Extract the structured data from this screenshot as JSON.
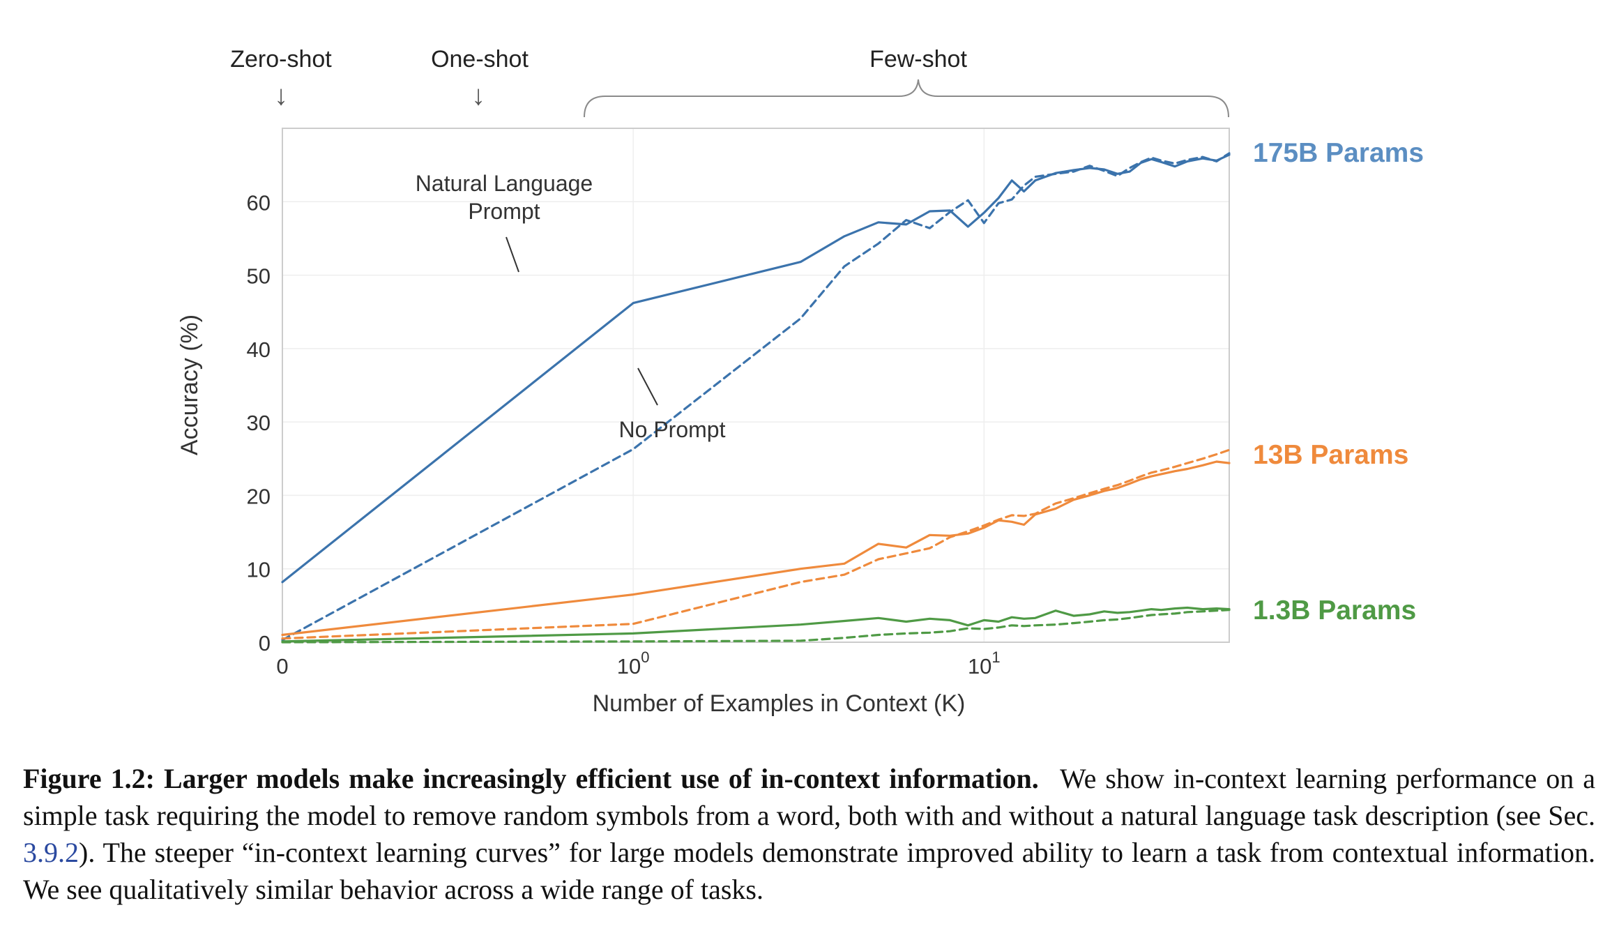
{
  "chart_data": {
    "type": "line",
    "xlabel": "Number of Examples in Context  (K)",
    "ylabel": "Accuracy (%)",
    "x_scale": "symlog",
    "ylim": [
      0,
      70
    ],
    "xlim": [
      0,
      50
    ],
    "x_tick_labels": [
      {
        "value": 0,
        "base": "0",
        "exp": ""
      },
      {
        "value": 1,
        "base": "10",
        "exp": "0"
      },
      {
        "value": 10,
        "base": "10",
        "exp": "1"
      }
    ],
    "y_ticks": [
      0,
      10,
      20,
      30,
      40,
      50,
      60
    ],
    "regions": {
      "zero_shot": "Zero-shot",
      "one_shot": "One-shot",
      "few_shot": "Few-shot",
      "arrow": "↓"
    },
    "annotations": {
      "natural_language_line1": "Natural Language",
      "natural_language_line2": "Prompt",
      "no_prompt": "No Prompt"
    },
    "series_labels": {
      "p175b": "175B Params",
      "p13b": "13B Params",
      "p1_3b": "1.3B Params"
    },
    "colors": {
      "p175b": "#3b73ac",
      "p13b": "#ef8a3c",
      "p1_3b": "#4f9a45",
      "axis": "#cccccc",
      "grid": "#eeeeee",
      "text": "#333333"
    },
    "series": [
      {
        "name": "175B Natural Language Prompt",
        "model": "p175b",
        "style": "solid",
        "x": [
          0,
          1,
          3,
          4,
          5,
          6,
          7,
          8,
          9,
          10,
          11,
          12,
          13,
          14,
          16,
          18,
          20,
          22,
          24,
          26,
          28,
          30,
          32,
          35,
          38,
          42,
          46,
          50
        ],
        "y": [
          8.2,
          46.2,
          51.8,
          55.3,
          57.2,
          56.9,
          58.7,
          58.8,
          56.6,
          58.5,
          60.5,
          62.9,
          61.4,
          62.9,
          63.9,
          64.3,
          64.6,
          64.4,
          63.8,
          64.1,
          65.3,
          65.8,
          65.4,
          64.8,
          65.5,
          65.9,
          65.6,
          66.4
        ]
      },
      {
        "name": "175B No Prompt",
        "model": "p175b",
        "style": "dashed",
        "x": [
          0,
          1,
          3,
          4,
          5,
          6,
          7,
          8,
          9,
          10,
          11,
          12,
          13,
          14,
          16,
          18,
          20,
          22,
          24,
          26,
          28,
          30,
          32,
          35,
          38,
          42,
          46,
          50
        ],
        "y": [
          0.3,
          26.3,
          44.1,
          51.2,
          54.3,
          57.5,
          56.4,
          58.6,
          60.2,
          57.1,
          59.8,
          60.3,
          62.2,
          63.4,
          63.8,
          64.1,
          64.9,
          64.2,
          63.5,
          64.6,
          65.4,
          66.0,
          65.6,
          65.2,
          65.7,
          66.1,
          65.5,
          66.6
        ]
      },
      {
        "name": "13B Natural Language Prompt",
        "model": "p13b",
        "style": "solid",
        "x": [
          0,
          1,
          3,
          4,
          5,
          6,
          7,
          8,
          9,
          10,
          11,
          12,
          13,
          14,
          16,
          18,
          20,
          22,
          24,
          26,
          28,
          30,
          32,
          35,
          38,
          42,
          46,
          50
        ],
        "y": [
          1.0,
          6.5,
          10.0,
          10.7,
          13.4,
          12.9,
          14.6,
          14.5,
          14.8,
          15.6,
          16.6,
          16.4,
          16.0,
          17.4,
          18.2,
          19.4,
          20.0,
          20.6,
          21.0,
          21.6,
          22.2,
          22.6,
          22.9,
          23.3,
          23.6,
          24.1,
          24.6,
          24.4
        ]
      },
      {
        "name": "13B No Prompt",
        "model": "p13b",
        "style": "dashed",
        "x": [
          0,
          1,
          3,
          4,
          5,
          6,
          7,
          8,
          9,
          10,
          11,
          12,
          13,
          14,
          16,
          18,
          20,
          22,
          24,
          26,
          28,
          30,
          32,
          35,
          38,
          42,
          46,
          50
        ],
        "y": [
          0.5,
          2.5,
          8.2,
          9.2,
          11.3,
          12.1,
          12.8,
          14.3,
          15.1,
          15.9,
          16.7,
          17.3,
          17.2,
          17.5,
          18.9,
          19.6,
          20.3,
          20.9,
          21.4,
          22.0,
          22.6,
          23.1,
          23.4,
          23.9,
          24.4,
          25.0,
          25.6,
          26.2
        ]
      },
      {
        "name": "1.3B Natural Language Prompt",
        "model": "p1_3b",
        "style": "solid",
        "x": [
          0,
          1,
          3,
          4,
          5,
          6,
          7,
          8,
          9,
          10,
          11,
          12,
          13,
          14,
          16,
          18,
          20,
          22,
          24,
          26,
          28,
          30,
          32,
          35,
          38,
          42,
          46,
          50
        ],
        "y": [
          0.1,
          1.2,
          2.4,
          2.9,
          3.3,
          2.8,
          3.2,
          3.0,
          2.3,
          3.0,
          2.8,
          3.4,
          3.2,
          3.3,
          4.3,
          3.6,
          3.8,
          4.2,
          4.0,
          4.1,
          4.3,
          4.5,
          4.4,
          4.6,
          4.7,
          4.5,
          4.6,
          4.5
        ]
      },
      {
        "name": "1.3B No Prompt",
        "model": "p1_3b",
        "style": "dashed",
        "x": [
          0,
          1,
          3,
          4,
          5,
          6,
          7,
          8,
          9,
          10,
          11,
          12,
          13,
          14,
          16,
          18,
          20,
          22,
          24,
          26,
          28,
          30,
          32,
          35,
          38,
          42,
          46,
          50
        ],
        "y": [
          0.0,
          0.1,
          0.2,
          0.6,
          1.0,
          1.2,
          1.3,
          1.5,
          1.9,
          1.8,
          2.0,
          2.3,
          2.2,
          2.3,
          2.4,
          2.6,
          2.8,
          3.0,
          3.1,
          3.3,
          3.5,
          3.7,
          3.8,
          3.9,
          4.1,
          4.2,
          4.3,
          4.4
        ]
      }
    ]
  },
  "caption": {
    "title": "Figure 1.2: Larger models make increasingly efficient use of in-context information.",
    "body_1": "We show in-context learning performance on a simple task requiring the model to remove random symbols from a word, both with and without a natural language task description (see Sec. ",
    "section_ref": "3.9.2",
    "body_2": "). The steeper “in-context learning curves” for large models demonstrate improved ability to learn a task from contextual information. We see qualitatively similar behavior across a wide range of tasks."
  }
}
